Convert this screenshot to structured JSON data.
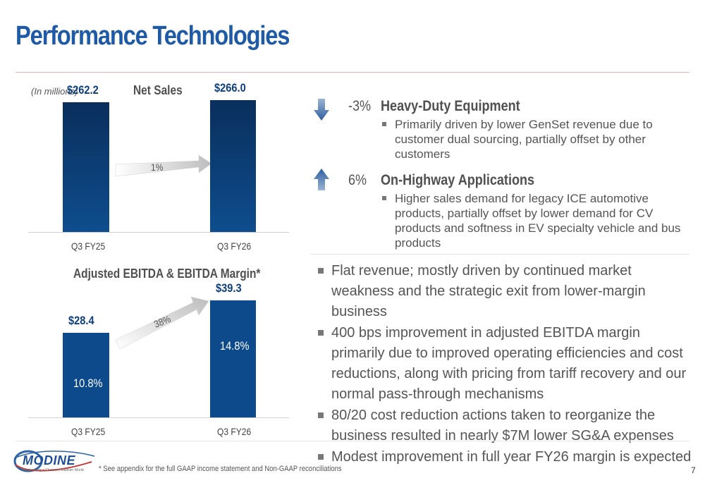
{
  "header": {
    "title": "Performance Technologies"
  },
  "units_note": "(In millions)",
  "net_sales": {
    "title": "Net Sales",
    "growth_label": "1%"
  },
  "ebitda": {
    "title": "Adjusted EBITDA & EBITDA Margin*",
    "growth_label": "38%"
  },
  "chart_data": [
    {
      "type": "bar",
      "title": "Net Sales",
      "categories": [
        "Q3 FY25",
        "Q3 FY26"
      ],
      "values": [
        262.2,
        266.0
      ],
      "value_labels": [
        "$262.2",
        "$266.0"
      ],
      "growth_label": "1%",
      "ylim": [
        0,
        370
      ]
    },
    {
      "type": "bar",
      "title": "Adjusted EBITDA & EBITDA Margin*",
      "categories": [
        "Q3 FY25",
        "Q3 FY26"
      ],
      "values": [
        28.4,
        39.3
      ],
      "value_labels": [
        "$28.4",
        "$39.3"
      ],
      "margin_labels": [
        "10.8%",
        "14.8%"
      ],
      "growth_label": "38%",
      "ylim": [
        0,
        41
      ]
    }
  ],
  "segments": [
    {
      "change": "-3%",
      "direction": "down",
      "name": "Heavy-Duty Equipment",
      "bullets": [
        "Primarily driven by lower GenSet revenue due to customer dual sourcing, partially offset by other customers"
      ]
    },
    {
      "change": "6%",
      "direction": "up",
      "name": "On-Highway Applications",
      "bullets": [
        "Higher sales demand for legacy ICE automotive products, partially offset by lower demand for CV products and softness in EV specialty vehicle and bus products"
      ]
    }
  ],
  "highlights": [
    "Flat revenue; mostly driven by continued market weakness and the strategic exit from lower-margin business",
    "400 bps improvement in adjusted EBITDA margin primarily due to improved operating efficiencies and cost reductions, along with pricing from tariff recovery and our normal pass-through mechanisms",
    "80/20 cost reduction actions taken to reorganize the business resulted in nearly $7M lower SG&A expenses",
    "Modest improvement in full year FY26 margin is expected"
  ],
  "footer": {
    "footnote": "* See appendix for the full GAAP income statement and Non-GAAP reconciliations",
    "page_number": "7",
    "logo_text": "MODINE",
    "logo_tagline": "Engineering a Cleaner, Healthier World"
  },
  "colors": {
    "title": "#1f5aa6",
    "bar": "#0d4a8c",
    "bar_label": "#0d3f7a",
    "arrow": "#2e5f9e",
    "rule": "#e8b4b4"
  },
  "icons": {
    "down": "arrow-down-icon",
    "up": "arrow-up-icon"
  }
}
